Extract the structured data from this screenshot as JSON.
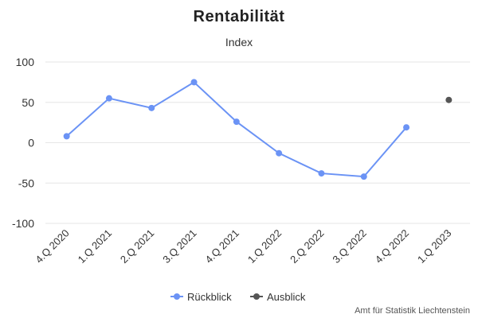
{
  "chart_data": {
    "type": "line",
    "title": "Rentabilität",
    "subtitle": "Index",
    "categories": [
      "4.Q 2020",
      "1.Q 2021",
      "2.Q 2021",
      "3.Q 2021",
      "4.Q 2021",
      "1.Q 2022",
      "2.Q 2022",
      "3.Q 2022",
      "4.Q 2022",
      "1.Q 2023"
    ],
    "yticks": [
      100,
      50,
      0,
      -50,
      -100
    ],
    "ylim": [
      -100,
      100
    ],
    "grid": true,
    "legend_position": "bottom-center",
    "series": [
      {
        "name": "Rückblick",
        "color": "#6b93f5",
        "values": [
          8,
          55,
          43,
          75,
          26,
          -13,
          -38,
          -42,
          19,
          null
        ]
      },
      {
        "name": "Ausblick",
        "color": "#555555",
        "values": [
          null,
          null,
          null,
          null,
          null,
          null,
          null,
          null,
          null,
          53
        ]
      }
    ],
    "credits": "Amt für Statistik Liechtenstein"
  }
}
